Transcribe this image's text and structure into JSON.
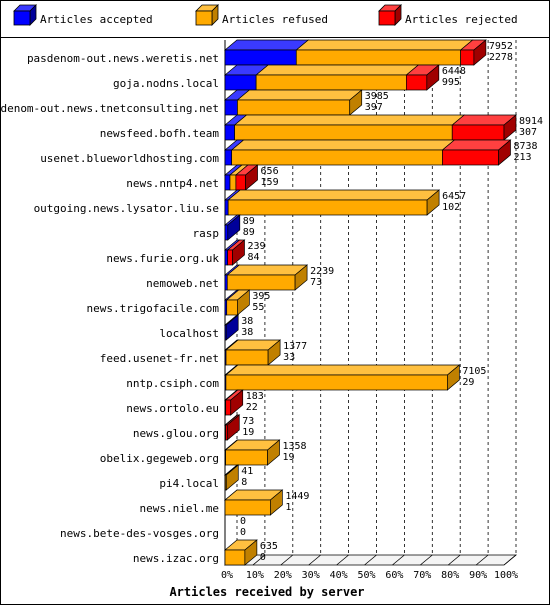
{
  "chart_data": {
    "type": "bar",
    "stacked": true,
    "orientation": "horizontal",
    "style": "3d",
    "xlabel": "Articles received by server",
    "ticks": [
      "0%",
      "10%",
      "20%",
      "30%",
      "40%",
      "50%",
      "60%",
      "70%",
      "80%",
      "90%",
      "100%"
    ],
    "scale_max": 8914,
    "legend_position": "top",
    "grid": true,
    "series": [
      {
        "name": "Articles accepted",
        "color": "#0000ff",
        "dark": "#00009a",
        "top": "#3a3aff"
      },
      {
        "name": "Articles refused",
        "color": "#ffaa00",
        "dark": "#c08000",
        "top": "#ffc040"
      },
      {
        "name": "Articles rejected",
        "color": "#ff0000",
        "dark": "#a00000",
        "top": "#ff4040"
      }
    ],
    "rows": [
      {
        "server": "pasdenom-out.news.weretis.net",
        "accepted": 2278,
        "refused": 5251,
        "rejected": 423,
        "total": 7952,
        "label_b": 2278
      },
      {
        "server": "goja.nodns.local",
        "accepted": 995,
        "refused": 4799,
        "rejected": 654,
        "total": 6448,
        "label_b": 995
      },
      {
        "server": "pasdenom-out.news.tnetconsulting.net",
        "accepted": 397,
        "refused": 3588,
        "rejected": 0,
        "total": 3985,
        "label_b": 397
      },
      {
        "server": "newsfeed.bofh.team",
        "accepted": 307,
        "refused": 6953,
        "rejected": 1654,
        "total": 8914,
        "label_b": 307
      },
      {
        "server": "usenet.blueworldhosting.com",
        "accepted": 213,
        "refused": 6734,
        "rejected": 1791,
        "total": 8738,
        "label_b": 213
      },
      {
        "server": "news.nntp4.net",
        "accepted": 159,
        "refused": 189,
        "rejected": 308,
        "total": 656,
        "label_b": 159
      },
      {
        "server": "outgoing.news.lysator.liu.se",
        "accepted": 102,
        "refused": 6355,
        "rejected": 0,
        "total": 6457,
        "label_b": 102
      },
      {
        "server": "rasp",
        "accepted": 89,
        "refused": 0,
        "rejected": 0,
        "total": 89,
        "label_b": 89
      },
      {
        "server": "news.furie.org.uk",
        "accepted": 84,
        "refused": 0,
        "rejected": 155,
        "total": 239,
        "label_b": 84
      },
      {
        "server": "nemoweb.net",
        "accepted": 73,
        "refused": 2166,
        "rejected": 0,
        "total": 2239,
        "label_b": 73
      },
      {
        "server": "news.trigofacile.com",
        "accepted": 55,
        "refused": 340,
        "rejected": 0,
        "total": 395,
        "label_b": 55
      },
      {
        "server": "localhost",
        "accepted": 38,
        "refused": 0,
        "rejected": 0,
        "total": 38,
        "label_b": 38
      },
      {
        "server": "feed.usenet-fr.net",
        "accepted": 33,
        "refused": 1344,
        "rejected": 0,
        "total": 1377,
        "label_b": 33
      },
      {
        "server": "nntp.csiph.com",
        "accepted": 29,
        "refused": 7076,
        "rejected": 0,
        "total": 7105,
        "label_b": 29
      },
      {
        "server": "news.ortolo.eu",
        "accepted": 22,
        "refused": 0,
        "rejected": 161,
        "total": 183,
        "label_b": 22
      },
      {
        "server": "news.glou.org",
        "accepted": 19,
        "refused": 0,
        "rejected": 54,
        "total": 73,
        "label_b": 19
      },
      {
        "server": "obelix.gegeweb.org",
        "accepted": 19,
        "refused": 1339,
        "rejected": 0,
        "total": 1358,
        "label_b": 19
      },
      {
        "server": "pi4.local",
        "accepted": 8,
        "refused": 33,
        "rejected": 0,
        "total": 41,
        "label_b": 8
      },
      {
        "server": "news.niel.me",
        "accepted": 1,
        "refused": 1448,
        "rejected": 0,
        "total": 1449,
        "label_b": 1
      },
      {
        "server": "news.bete-des-vosges.org",
        "accepted": 0,
        "refused": 0,
        "rejected": 0,
        "total": 0,
        "label_b": 0
      },
      {
        "server": "news.izac.org",
        "accepted": 0,
        "refused": 635,
        "rejected": 0,
        "total": 635,
        "label_b": 0
      }
    ]
  }
}
